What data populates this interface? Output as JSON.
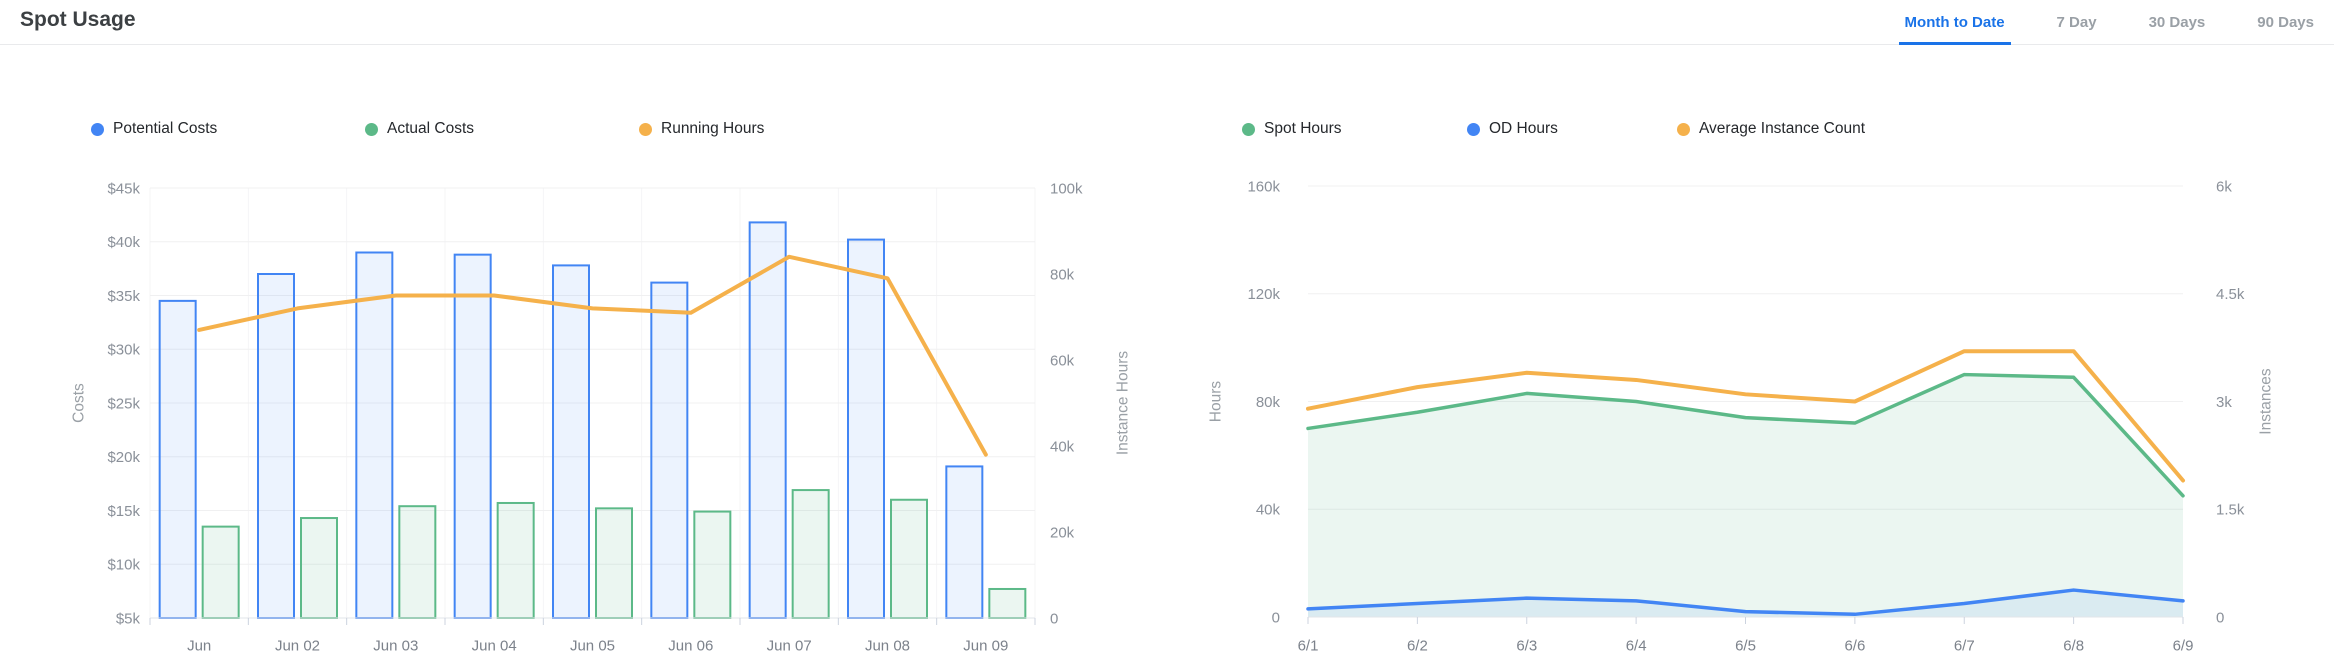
{
  "header": {
    "title": "Spot Usage",
    "tabs": [
      {
        "label": "Month to Date",
        "active": true
      },
      {
        "label": "7 Day",
        "active": false
      },
      {
        "label": "30 Days",
        "active": false
      },
      {
        "label": "90 Days",
        "active": false
      }
    ]
  },
  "colors": {
    "blue": "#4285f4",
    "green": "#5cb988",
    "orange": "#f5b14b",
    "blue_fill": "rgba(66,133,244,0.10)",
    "green_fill": "rgba(92,185,136,0.12)",
    "active_tab": "#1a73e8"
  },
  "chart_data": [
    {
      "type": "bar",
      "title": "Spot usage costs and running hours",
      "categories": [
        "Jun",
        "Jun 02",
        "Jun 03",
        "Jun 04",
        "Jun 05",
        "Jun 06",
        "Jun 07",
        "Jun 08",
        "Jun 09"
      ],
      "series": [
        {
          "name": "Potential Costs",
          "type": "bar",
          "axis": "left",
          "color": "blue",
          "values": [
            34500,
            37000,
            39000,
            38800,
            37800,
            36200,
            41800,
            40200,
            19100
          ]
        },
        {
          "name": "Actual Costs",
          "type": "bar",
          "axis": "left",
          "color": "green",
          "values": [
            13500,
            14300,
            15400,
            15700,
            15200,
            14900,
            16900,
            16000,
            7700
          ]
        },
        {
          "name": "Running Hours",
          "type": "line",
          "axis": "right",
          "color": "orange",
          "values": [
            67000,
            72000,
            75000,
            75000,
            72000,
            71000,
            84000,
            79000,
            38000
          ]
        }
      ],
      "left_axis": {
        "name": "Costs",
        "min": 5000,
        "max": 45000,
        "ticks": [
          {
            "label": "$5k",
            "value": 5000
          },
          {
            "label": "$10k",
            "value": 10000
          },
          {
            "label": "$15k",
            "value": 15000
          },
          {
            "label": "$20k",
            "value": 20000
          },
          {
            "label": "$25k",
            "value": 25000
          },
          {
            "label": "$30k",
            "value": 30000
          },
          {
            "label": "$35k",
            "value": 35000
          },
          {
            "label": "$40k",
            "value": 40000
          },
          {
            "label": "$45k",
            "value": 45000
          }
        ]
      },
      "right_axis": {
        "name": "Instance Hours",
        "min": 0,
        "max": 100000,
        "ticks": [
          {
            "label": "0",
            "value": 0
          },
          {
            "label": "20k",
            "value": 20000
          },
          {
            "label": "40k",
            "value": 40000
          },
          {
            "label": "60k",
            "value": 60000
          },
          {
            "label": "80k",
            "value": 80000
          },
          {
            "label": "100k",
            "value": 100000
          }
        ]
      },
      "grid": true,
      "legend_position": "top"
    },
    {
      "type": "area",
      "title": "Spot and on-demand hours with average instance count",
      "categories": [
        "6/1",
        "6/2",
        "6/3",
        "6/4",
        "6/5",
        "6/6",
        "6/7",
        "6/8",
        "6/9"
      ],
      "series": [
        {
          "name": "Spot Hours",
          "type": "area",
          "axis": "left",
          "color": "green",
          "values": [
            70000,
            76000,
            83000,
            80000,
            74000,
            72000,
            90000,
            89000,
            45000
          ]
        },
        {
          "name": "OD Hours",
          "type": "area",
          "axis": "left",
          "color": "blue",
          "values": [
            3000,
            5000,
            7000,
            6000,
            2000,
            1000,
            5000,
            10000,
            6000
          ]
        },
        {
          "name": "Average Instance Count",
          "type": "line",
          "axis": "right",
          "color": "orange",
          "values": [
            2900,
            3200,
            3400,
            3300,
            3100,
            3000,
            3700,
            3700,
            1900
          ]
        }
      ],
      "left_axis": {
        "name": "Hours",
        "min": 0,
        "max": 160000,
        "ticks": [
          {
            "label": "0",
            "value": 0
          },
          {
            "label": "40k",
            "value": 40000
          },
          {
            "label": "80k",
            "value": 80000
          },
          {
            "label": "120k",
            "value": 120000
          },
          {
            "label": "160k",
            "value": 160000
          }
        ]
      },
      "right_axis": {
        "name": "Instances",
        "min": 0,
        "max": 6000,
        "ticks": [
          {
            "label": "0",
            "value": 0
          },
          {
            "label": "1.5k",
            "value": 1500
          },
          {
            "label": "3k",
            "value": 3000
          },
          {
            "label": "4.5k",
            "value": 4500
          },
          {
            "label": "6k",
            "value": 6000
          }
        ]
      },
      "grid": true,
      "legend_position": "top"
    }
  ]
}
